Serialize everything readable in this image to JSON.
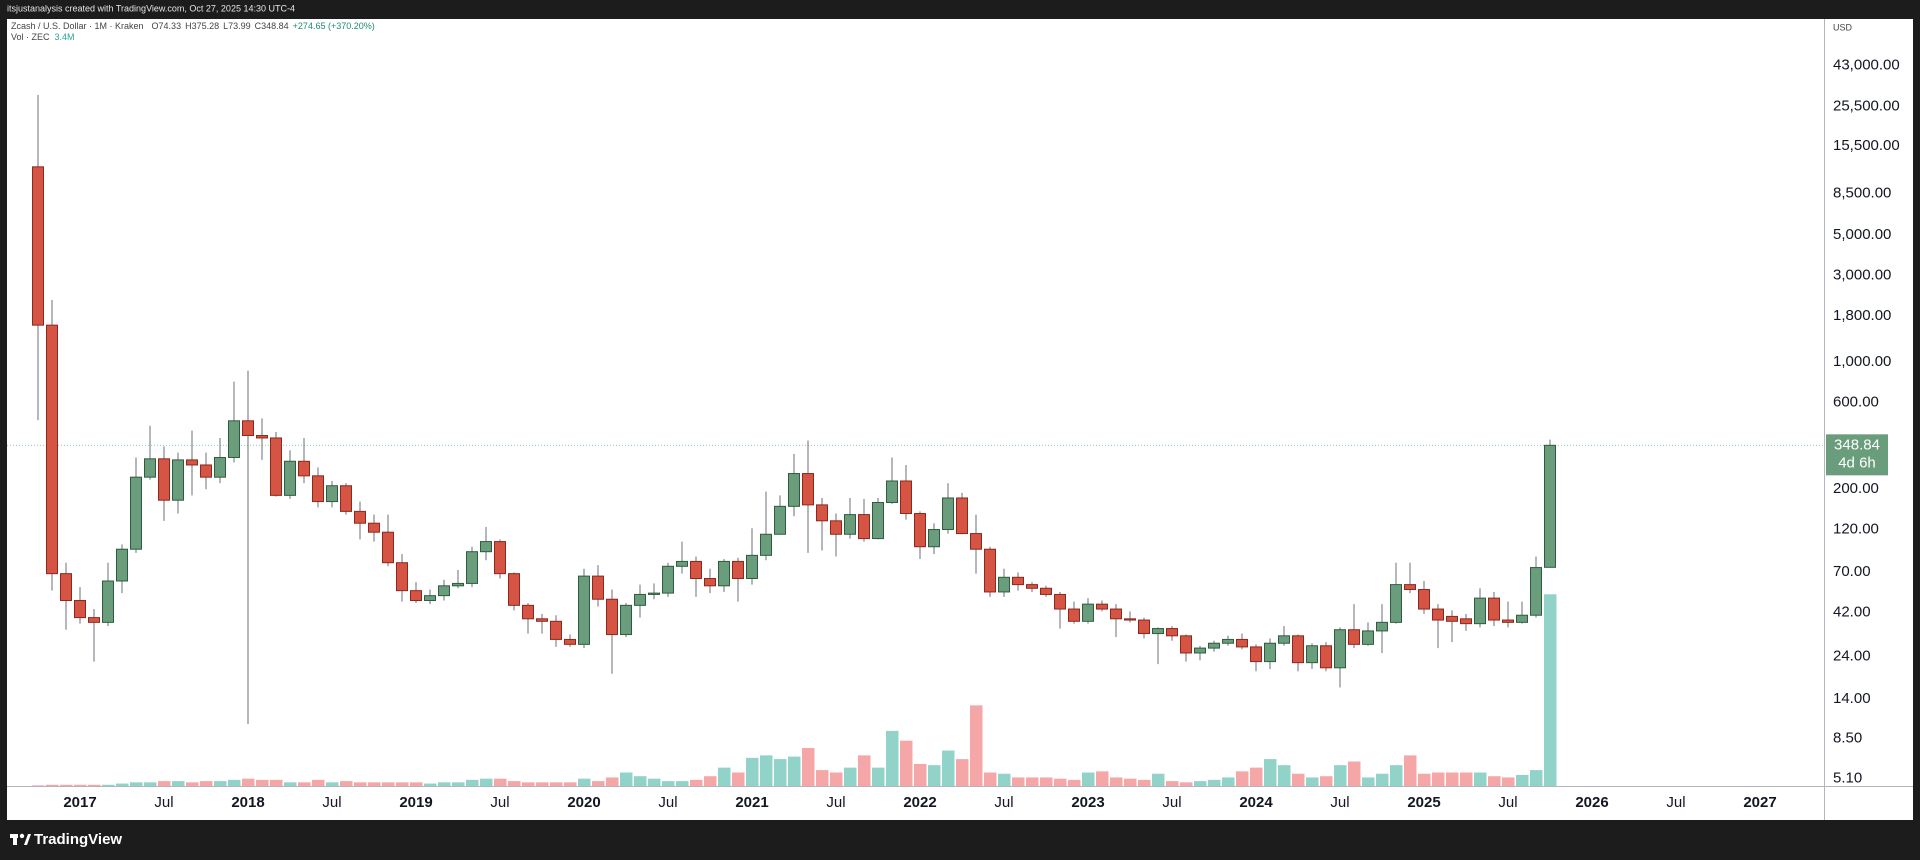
{
  "header": {
    "credit": "itsjustanalysis created with TradingView.com, Oct 27, 2025 14:30 UTC-4"
  },
  "chart_data": {
    "type": "candlestick",
    "title": "Zcash / U.S. Dollar · 1M · Kraken",
    "ohlc_labels": [
      "O74.33",
      "H375.28",
      "L73.99",
      "C348.84"
    ],
    "change_label": "+274.65 (+370.20%)",
    "volume_title": "Vol · ZEC",
    "volume_label": "3.4M",
    "currency": "USD",
    "last_price_label": "348.84",
    "countdown": "4d 6h",
    "log_scale": true,
    "grid": false,
    "up_color": "#6a9d7b",
    "down_color": "#d65443",
    "up_border": "#2f5c3f",
    "down_border": "#8a2a1e",
    "wick_color": "#6b6f78",
    "up_volume_color": "#92d3c9",
    "down_volume_color": "#f5a7a7",
    "open": [
      11900,
      1600,
      68.6,
      48.8,
      39.3,
      37.0,
      62.5,
      93.5,
      233,
      294,
      174,
      290,
      272,
      233,
      299,
      476,
      395,
      383,
      185,
      285,
      237,
      171,
      209,
      151,
      130,
      116,
      78.8,
      55.3,
      48.8,
      51.9,
      58.8,
      60.6,
      90.6,
      103,
      68.6,
      45.9,
      38.7,
      37.5,
      29.8,
      28.0,
      66.5,
      49.6,
      31.7,
      45.9,
      52.7,
      53.6,
      75.3,
      80.1,
      64.5,
      58.8,
      80.1,
      64.5,
      86.5,
      113,
      161,
      244,
      164,
      134,
      113,
      145,
      107,
      169,
      222,
      147,
      96.5,
      120,
      179,
      114,
      93.5,
      54.4,
      65.5,
      59.7,
      57.0,
      52.7,
      43.8,
      37.5,
      46.6,
      43.8,
      38.7,
      38.1,
      32.1,
      34.2,
      31.2,
      25.1,
      26.7,
      28.4,
      29.8,
      27.1,
      22.5,
      28.4,
      31.2,
      22.2,
      27.5,
      20.8,
      33.7,
      28.0,
      33.2,
      37.0,
      59.7,
      56.1,
      43.8,
      39.9,
      38.7,
      36.4,
      50.3,
      38.1,
      37.0,
      40.5,
      74.33
    ],
    "high": [
      29600,
      2200,
      78.8,
      57.9,
      43.8,
      78.8,
      99.4,
      299,
      447,
      344,
      318,
      420,
      318,
      383,
      782,
      899,
      491,
      413,
      328,
      383,
      264,
      222,
      216,
      171,
      145,
      145,
      87.8,
      61.6,
      56.1,
      63.5,
      71.9,
      96.5,
      124,
      106,
      69.7,
      47.3,
      41.2,
      40.5,
      31.7,
      73.0,
      76.4,
      56.1,
      47.3,
      59.7,
      60.6,
      78.8,
      103,
      85.2,
      73.0,
      82.6,
      83.9,
      122,
      194,
      185,
      313,
      371,
      179,
      147,
      179,
      177,
      179,
      299,
      272,
      151,
      130,
      216,
      191,
      145,
      96.5,
      73.0,
      69.7,
      61.6,
      58.8,
      54.4,
      48.1,
      50.3,
      48.8,
      46.6,
      42.5,
      39.3,
      34.7,
      35.3,
      31.7,
      27.5,
      29.3,
      31.2,
      32.1,
      28.0,
      30.2,
      35.3,
      31.7,
      28.4,
      28.8,
      34.7,
      46.6,
      37.0,
      46.6,
      78.8,
      78.8,
      62.5,
      46.6,
      43.1,
      41.2,
      57.0,
      54.4,
      48.1,
      48.1,
      85.2,
      375.28
    ],
    "low": [
      480,
      55.3,
      33.7,
      36.4,
      22.5,
      35.3,
      53.6,
      89.2,
      226,
      134,
      147,
      185,
      200,
      216,
      281,
      10.2,
      290,
      182,
      177,
      216,
      159,
      159,
      145,
      106,
      103,
      75.3,
      48.1,
      47.3,
      46.6,
      48.8,
      57.0,
      57.9,
      81.3,
      64.5,
      43.1,
      32.1,
      32.1,
      27.1,
      27.1,
      26.7,
      45.2,
      19.3,
      30.7,
      39.3,
      49.6,
      51.1,
      68.6,
      51.1,
      53.6,
      54.4,
      48.1,
      59.7,
      81.3,
      113,
      142,
      89.2,
      92.0,
      85.2,
      107,
      103,
      106,
      166,
      136,
      82.6,
      87.8,
      114,
      113,
      68.6,
      51.1,
      51.1,
      55.3,
      54.4,
      51.1,
      34.2,
      36.4,
      36.4,
      42.5,
      30.7,
      37.0,
      30.2,
      21.8,
      29.3,
      22.5,
      22.9,
      25.5,
      27.5,
      26.3,
      19.9,
      20.5,
      27.5,
      19.9,
      20.5,
      19.9,
      16.2,
      26.7,
      27.5,
      25.1,
      36.4,
      53.6,
      41.2,
      26.7,
      28.8,
      33.2,
      34.7,
      35.3,
      34.7,
      36.4,
      39.3,
      73.99
    ],
    "close": [
      1600,
      68.6,
      48.8,
      39.3,
      37.0,
      62.5,
      93.5,
      233,
      294,
      174,
      290,
      272,
      233,
      299,
      476,
      395,
      383,
      185,
      285,
      237,
      171,
      209,
      151,
      130,
      116,
      78.8,
      55.3,
      48.8,
      51.9,
      58.8,
      60.6,
      90.6,
      103,
      68.6,
      45.9,
      38.7,
      37.5,
      29.8,
      28.0,
      66.5,
      49.6,
      31.7,
      45.9,
      52.7,
      53.6,
      75.3,
      80.1,
      64.5,
      58.8,
      80.1,
      64.5,
      86.5,
      113,
      161,
      244,
      164,
      134,
      113,
      145,
      107,
      169,
      222,
      147,
      96.5,
      120,
      179,
      114,
      93.5,
      54.4,
      65.5,
      59.7,
      57.0,
      52.7,
      43.8,
      37.5,
      46.6,
      43.8,
      38.7,
      38.1,
      32.1,
      34.2,
      31.2,
      25.1,
      26.7,
      28.4,
      29.8,
      27.1,
      22.5,
      28.4,
      31.2,
      22.2,
      27.5,
      20.8,
      33.7,
      28.0,
      33.2,
      37.0,
      59.7,
      56.1,
      43.8,
      38.1,
      37.5,
      36.4,
      50.3,
      38.1,
      37.0,
      40.5,
      74.1,
      348.84
    ],
    "volume": [
      10900,
      21700,
      21700,
      21700,
      21700,
      21700,
      43400,
      65100,
      65100,
      86800,
      86800,
      65100,
      86800,
      86800,
      109000,
      130000,
      109000,
      109000,
      65100,
      65100,
      109000,
      65100,
      86800,
      65100,
      65100,
      65100,
      65100,
      65100,
      43400,
      65100,
      65100,
      109000,
      130000,
      130000,
      86800,
      65100,
      65100,
      65100,
      65100,
      130000,
      86800,
      152000,
      239000,
      174000,
      130000,
      86800,
      86800,
      109000,
      174000,
      326000,
      239000,
      499000,
      543000,
      477000,
      521000,
      673000,
      282000,
      239000,
      326000,
      543000,
      326000,
      977000,
      803000,
      391000,
      369000,
      629000,
      477000,
      1430000,
      239000,
      217000,
      152000,
      152000,
      152000,
      130000,
      109000,
      239000,
      260000,
      152000,
      130000,
      109000,
      217000,
      86800,
      65100,
      86800,
      109000,
      152000,
      260000,
      326000,
      477000,
      369000,
      217000,
      152000,
      174000,
      369000,
      434000,
      152000,
      217000,
      369000,
      543000,
      217000,
      239000,
      239000,
      239000,
      239000,
      174000,
      152000,
      196000,
      282000,
      3400000
    ],
    "ylim": [
      4.65,
      77500
    ],
    "yticks": [
      {
        "value": 5.1,
        "label": "5.10"
      },
      {
        "value": 8.5,
        "label": "8.50"
      },
      {
        "value": 14,
        "label": "14.00"
      },
      {
        "value": 24,
        "label": "24.00"
      },
      {
        "value": 42,
        "label": "42.00"
      },
      {
        "value": 70,
        "label": "70.00"
      },
      {
        "value": 120,
        "label": "120.00"
      },
      {
        "value": 200,
        "label": "200.00"
      },
      {
        "value": 600,
        "label": "600.00"
      },
      {
        "value": 1000,
        "label": "1,000.00"
      },
      {
        "value": 1800,
        "label": "1,800.00"
      },
      {
        "value": 3000,
        "label": "3,000.00"
      },
      {
        "value": 5000,
        "label": "5,000.00"
      },
      {
        "value": 8500,
        "label": "8,500.00"
      },
      {
        "value": 15500,
        "label": "15,500.00"
      },
      {
        "value": 25500,
        "label": "25,500.00"
      },
      {
        "value": 43000,
        "label": "43,000.00"
      }
    ],
    "xticks": [
      "2017",
      "Jul",
      "2018",
      "Jul",
      "2019",
      "Jul",
      "2020",
      "Jul",
      "2021",
      "Jul",
      "2022",
      "Jul",
      "2023",
      "Jul",
      "2024",
      "Jul",
      "2025",
      "Jul",
      "2026",
      "Jul",
      "2027"
    ]
  },
  "footer": {
    "brand": "TradingView"
  }
}
